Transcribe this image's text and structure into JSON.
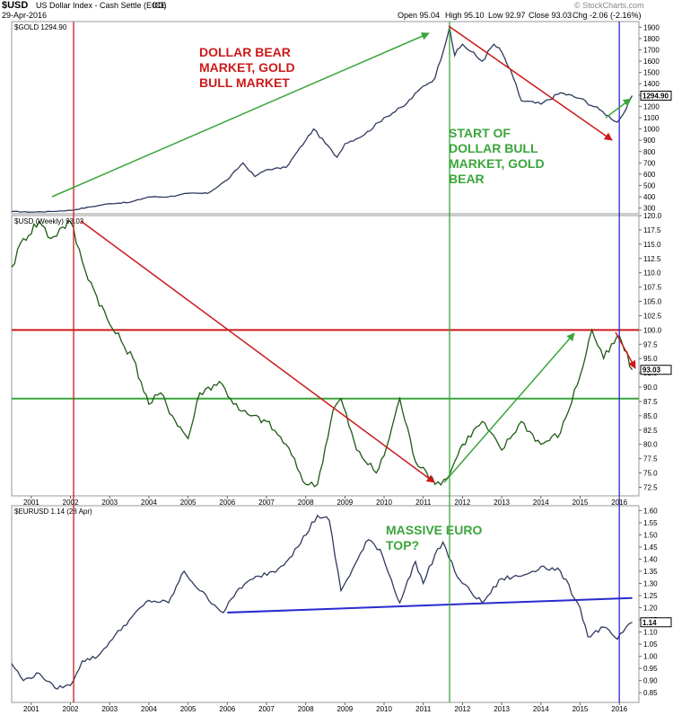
{
  "header": {
    "symbol": "$USD",
    "description": "US Dollar Index - Cash Settle (EOD)",
    "exchange": "ICE",
    "date": "29-Apr-2016",
    "open": "Open 95.04",
    "high": "High 95.10",
    "low": "Low 92.97",
    "close": "Close 93.03",
    "change": "Chg -2.06 (-2.16%)",
    "watermark": "© StockCharts.com"
  },
  "colors": {
    "price": "#2f3a5e",
    "usd_price": "#1e5a14",
    "red": "#cc1a1a",
    "green": "#3aa53a",
    "blue": "#2a2ad0",
    "vline_red": "#c0392b",
    "vline_green": "#3aa53a",
    "vline_blue": "#2a2ad0"
  },
  "chart_data": [
    {
      "type": "line",
      "panel_label": "$GOLD 1294.90",
      "last_value_label": "1294.90",
      "ylim": [
        250,
        1950
      ],
      "yticks": [
        "300",
        "400",
        "500",
        "600",
        "700",
        "800",
        "900",
        "1000",
        "1100",
        "1200",
        "1300",
        "1400",
        "1500",
        "1600",
        "1700",
        "1800",
        "1900"
      ],
      "series": [
        {
          "x": [
            2000.5,
            2001.0,
            2001.5,
            2002.0,
            2002.5,
            2003.0,
            2003.5,
            2004.0,
            2004.5,
            2005.0,
            2005.5,
            2006.0,
            2006.4,
            2006.7,
            2007.0,
            2007.5,
            2008.0,
            2008.2,
            2008.8,
            2009.0,
            2009.5,
            2010.0,
            2010.5,
            2011.0,
            2011.3,
            2011.67,
            2011.8,
            2012.0,
            2012.5,
            2012.8,
            2013.0,
            2013.3,
            2013.5,
            2014.0,
            2014.5,
            2015.0,
            2015.5,
            2015.95,
            2016.1,
            2016.33
          ],
          "y": [
            270,
            265,
            270,
            280,
            310,
            340,
            350,
            400,
            400,
            430,
            430,
            550,
            700,
            580,
            640,
            660,
            900,
            1000,
            750,
            870,
            950,
            1100,
            1200,
            1380,
            1450,
            1900,
            1650,
            1750,
            1600,
            1750,
            1680,
            1450,
            1250,
            1220,
            1320,
            1270,
            1170,
            1060,
            1130,
            1294.9
          ]
        }
      ],
      "annotations": [
        {
          "text": "DOLLAR BEAR MARKET, GOLD BULL MARKET",
          "color": "red"
        },
        {
          "text": "START OF DOLLAR BULL MARKET, GOLD BEAR",
          "color": "green"
        }
      ]
    },
    {
      "type": "line",
      "panel_label": "$USD (Weekly) 93.03",
      "last_value_label": "93.03",
      "ylim": [
        71,
        120
      ],
      "yticks": [
        "72.5",
        "75.0",
        "77.5",
        "80.0",
        "82.5",
        "85.0",
        "87.5",
        "90.0",
        "92.5",
        "95.0",
        "97.5",
        "100.0",
        "102.5",
        "105.0",
        "107.5",
        "110.0",
        "112.5",
        "115.0",
        "117.5",
        "120.0"
      ],
      "hlines": [
        {
          "value": 100.0,
          "color": "red"
        },
        {
          "value": 88.0,
          "color": "green"
        }
      ],
      "series": [
        {
          "x": [
            2000.5,
            2000.8,
            2001.2,
            2001.5,
            2001.8,
            2002.0,
            2002.3,
            2002.6,
            2003.0,
            2003.3,
            2003.6,
            2004.0,
            2004.3,
            2004.6,
            2005.0,
            2005.3,
            2005.8,
            2006.3,
            2006.6,
            2007.0,
            2007.5,
            2008.0,
            2008.3,
            2008.7,
            2008.9,
            2009.3,
            2009.8,
            2010.0,
            2010.4,
            2010.8,
            2011.0,
            2011.3,
            2011.6,
            2012.0,
            2012.5,
            2013.0,
            2013.5,
            2014.0,
            2014.5,
            2015.0,
            2015.3,
            2015.6,
            2016.0,
            2016.33
          ],
          "y": [
            111,
            116,
            119,
            116,
            118,
            119,
            112,
            107,
            101,
            98,
            95,
            87,
            89,
            85,
            81,
            89,
            91,
            86,
            85,
            84,
            80,
            73,
            73,
            86,
            88,
            79,
            75,
            78,
            88,
            77,
            76,
            73,
            74,
            80,
            84,
            79,
            84,
            80,
            82,
            92,
            100,
            95,
            99,
            93.03
          ]
        }
      ]
    },
    {
      "type": "line",
      "panel_label": "$EURUSD 1.14 (28 Apr)",
      "last_value_label": "1.14",
      "ylim": [
        0.81,
        1.62
      ],
      "yticks": [
        "0.85",
        "0.90",
        "0.95",
        "1.00",
        "1.05",
        "1.10",
        "1.15",
        "1.20",
        "1.25",
        "1.30",
        "1.35",
        "1.40",
        "1.45",
        "1.50",
        "1.55",
        "1.60"
      ],
      "trendline": {
        "x": [
          2006.0,
          2016.33
        ],
        "y": [
          1.18,
          1.24
        ],
        "color": "blue"
      },
      "series": [
        {
          "x": [
            2000.5,
            2000.8,
            2001.2,
            2001.6,
            2002.0,
            2002.3,
            2002.7,
            2003.0,
            2003.5,
            2004.0,
            2004.5,
            2004.9,
            2005.3,
            2005.9,
            2006.3,
            2006.8,
            2007.3,
            2007.8,
            2008.3,
            2008.6,
            2008.9,
            2009.2,
            2009.6,
            2009.9,
            2010.4,
            2010.8,
            2011.0,
            2011.3,
            2011.5,
            2011.8,
            2012.0,
            2012.5,
            2013.0,
            2013.5,
            2014.0,
            2014.5,
            2015.0,
            2015.2,
            2015.6,
            2015.95,
            2016.1,
            2016.33
          ],
          "y": [
            0.97,
            0.9,
            0.93,
            0.87,
            0.88,
            0.98,
            1.0,
            1.06,
            1.15,
            1.23,
            1.22,
            1.35,
            1.27,
            1.18,
            1.28,
            1.33,
            1.36,
            1.45,
            1.58,
            1.56,
            1.27,
            1.36,
            1.48,
            1.44,
            1.22,
            1.39,
            1.3,
            1.42,
            1.47,
            1.35,
            1.3,
            1.22,
            1.32,
            1.33,
            1.37,
            1.35,
            1.2,
            1.08,
            1.12,
            1.07,
            1.1,
            1.14
          ]
        }
      ],
      "annotations": [
        {
          "text": "MASSIVE EURO TOP?",
          "color": "green"
        }
      ]
    }
  ],
  "x_axis": {
    "tick_labels": [
      "2001",
      "2002",
      "2003",
      "2004",
      "2005",
      "2006",
      "2007",
      "2008",
      "2009",
      "2010",
      "2011",
      "2012",
      "2013",
      "2014",
      "2015",
      "2016"
    ],
    "tick_values": [
      2001,
      2002,
      2003,
      2004,
      2005,
      2006,
      2007,
      2008,
      2009,
      2010,
      2011,
      2012,
      2013,
      2014,
      2015,
      2016
    ],
    "xlim": [
      2000.5,
      2016.5
    ]
  },
  "vertical_markers": [
    {
      "x": 2002.08,
      "color": "red"
    },
    {
      "x": 2011.67,
      "color": "green"
    },
    {
      "x": 2016.0,
      "color": "blue"
    }
  ]
}
